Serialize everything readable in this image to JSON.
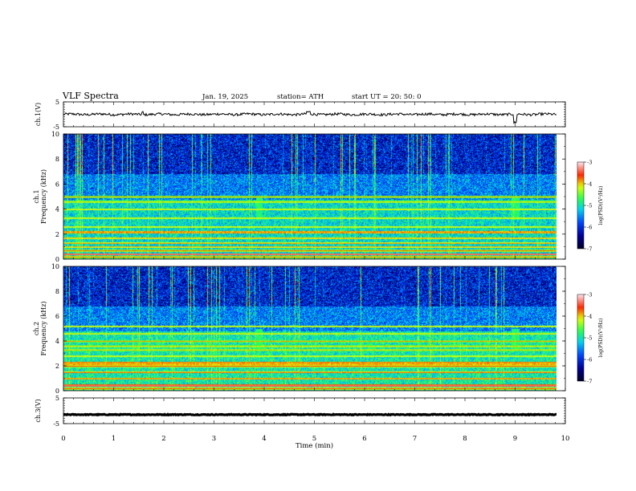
{
  "header": {
    "title": "VLF  Spectra",
    "date": "Jan. 19, 2025",
    "station": "station= ATH",
    "start": "start  UT  =   20: 50: 0"
  },
  "chart_data": [
    {
      "type": "line",
      "name": "ch1-waveform",
      "ylabel": "ch.1(V)",
      "ylim": [
        -5,
        5
      ],
      "yticks": [
        "5",
        "-5"
      ],
      "baseline": 0
    },
    {
      "type": "heatmap",
      "name": "ch1-spectrogram",
      "ylabel_channel": "ch.1",
      "ylabel": "Frequency  (kHz)",
      "ylim": [
        0,
        10
      ],
      "yticks": [
        "10",
        "8",
        "6",
        "4",
        "2",
        "0"
      ],
      "colorbar": {
        "label": "log(PSD)(V²/Hz)",
        "range": [
          -7,
          -3
        ],
        "ticks": [
          "-3",
          "-4",
          "-5",
          "-6",
          "-7"
        ]
      },
      "emission_lines_khz": [
        0.2,
        0.7,
        1.0,
        1.3,
        1.7,
        2.2,
        2.6,
        3.3,
        4.0,
        4.6,
        5.0
      ]
    },
    {
      "type": "heatmap",
      "name": "ch2-spectrogram",
      "ylabel_channel": "ch.2",
      "ylabel": "Frequency  (kHz)",
      "ylim": [
        0,
        10
      ],
      "yticks": [
        "10",
        "8",
        "6",
        "4",
        "2",
        "0"
      ],
      "colorbar": {
        "label": "log(PSD)(V²/Hz)",
        "range": [
          -7,
          -3
        ],
        "ticks": [
          "-3",
          "-4",
          "-5",
          "-6",
          "-7"
        ]
      },
      "emission_lines_khz": [
        0.2,
        0.5,
        1.0,
        1.5,
        2.0,
        2.3,
        2.8,
        3.3,
        3.6,
        4.0,
        4.6,
        5.2
      ]
    },
    {
      "type": "line",
      "name": "ch3-waveform",
      "ylabel": "ch.3(V)",
      "ylim": [
        -5,
        5
      ],
      "yticks": [
        "5",
        "-5"
      ],
      "baseline": -1.5
    }
  ],
  "x_axis": {
    "label": "Time  (min)",
    "range": [
      0,
      10
    ],
    "ticks": [
      "0",
      "1",
      "2",
      "3",
      "4",
      "5",
      "6",
      "7",
      "8",
      "9",
      "10"
    ],
    "data_end": 9.83
  },
  "colors": {
    "background_dark": "#000033",
    "colormap": [
      "#000000",
      "#0000ff",
      "#00ffff",
      "#00ff00",
      "#ffff00",
      "#ff0000",
      "#ffffff"
    ]
  }
}
